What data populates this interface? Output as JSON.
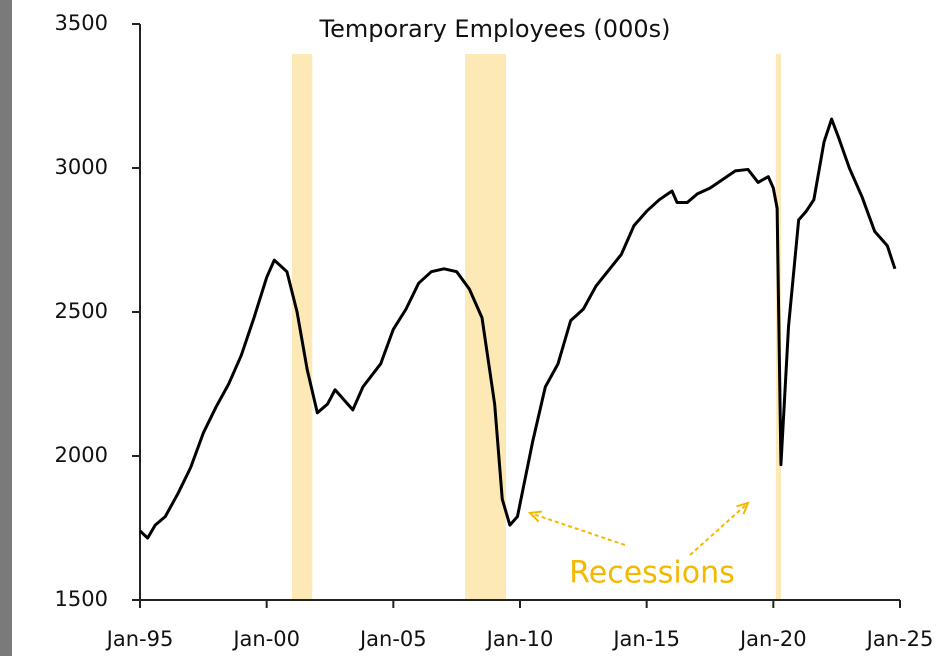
{
  "chart_data": {
    "type": "line",
    "title": "Temporary Employees (000s)",
    "x": [
      1995.0,
      1995.3,
      1995.6,
      1996.0,
      1996.5,
      1997.0,
      1997.5,
      1998.0,
      1998.5,
      1999.0,
      1999.5,
      2000.0,
      2000.3,
      2000.8,
      2001.2,
      2001.6,
      2002.0,
      2002.4,
      2002.7,
      2003.0,
      2003.4,
      2003.8,
      2004.5,
      2005.0,
      2005.5,
      2006.0,
      2006.5,
      2007.0,
      2007.5,
      2008.0,
      2008.5,
      2009.0,
      2009.3,
      2009.6,
      2009.9,
      2010.5,
      2011.0,
      2011.5,
      2012.0,
      2012.5,
      2013.0,
      2014.0,
      2014.5,
      2015.0,
      2015.5,
      2016.0,
      2016.2,
      2016.6,
      2017.0,
      2017.5,
      2018.0,
      2018.5,
      2019.0,
      2019.4,
      2019.8,
      2020.0,
      2020.15,
      2020.3,
      2020.6,
      2021.0,
      2021.3,
      2021.6,
      2022.0,
      2022.3,
      2022.6,
      2023.0,
      2023.5,
      2024.0,
      2024.5,
      2024.8
    ],
    "series": [
      {
        "name": "Temporary Employees",
        "color": "#000000",
        "values": [
          1740,
          1715,
          1760,
          1790,
          1870,
          1960,
          2080,
          2170,
          2250,
          2350,
          2480,
          2620,
          2680,
          2640,
          2500,
          2300,
          2150,
          2180,
          2230,
          2200,
          2160,
          2240,
          2320,
          2440,
          2510,
          2600,
          2640,
          2650,
          2640,
          2580,
          2480,
          2180,
          1850,
          1760,
          1790,
          2050,
          2240,
          2320,
          2470,
          2510,
          2590,
          2700,
          2800,
          2850,
          2890,
          2920,
          2880,
          2880,
          2910,
          2930,
          2960,
          2990,
          2995,
          2950,
          2970,
          2930,
          2860,
          1970,
          2450,
          2820,
          2850,
          2890,
          3090,
          3170,
          3100,
          3000,
          2900,
          2780,
          2730,
          2650
        ]
      }
    ],
    "xlim": [
      1995,
      2025
    ],
    "xticks": [
      {
        "value": 1995,
        "label": "Jan-95"
      },
      {
        "value": 2000,
        "label": "Jan-00"
      },
      {
        "value": 2005,
        "label": "Jan-05"
      },
      {
        "value": 2010,
        "label": "Jan-10"
      },
      {
        "value": 2015,
        "label": "Jan-15"
      },
      {
        "value": 2020,
        "label": "Jan-20"
      },
      {
        "value": 2025,
        "label": "Jan-25"
      }
    ],
    "ylim": [
      1500,
      3500
    ],
    "yticks": [
      1500,
      2000,
      2500,
      3000,
      3500
    ],
    "recessions": [
      [
        2001.0,
        2001.8
      ],
      [
        2007.83,
        2009.45
      ],
      [
        2020.1,
        2020.3
      ]
    ],
    "recession_color": "#fde9b6",
    "annotation": "Recessions",
    "annotation_color": "#f5b800"
  }
}
